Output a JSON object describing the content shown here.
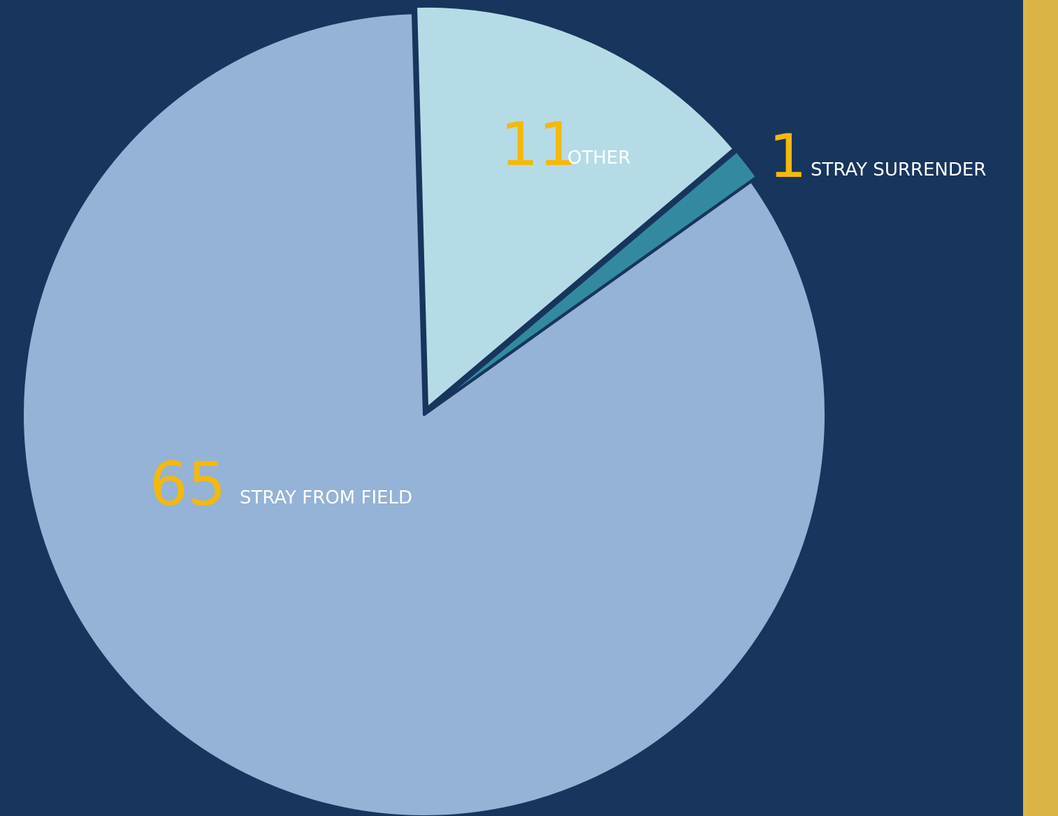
{
  "chart_data": {
    "type": "pie",
    "categories": [
      "Other",
      "Stray Surrender",
      "Stray From Field"
    ],
    "values": [
      11,
      1,
      65
    ],
    "data_labels": [
      {
        "value": "11",
        "label": "OTHER"
      },
      {
        "value": "1",
        "label": "STRAY SURRENDER"
      },
      {
        "value": "65",
        "label": "STRAY FROM FIELD"
      }
    ],
    "slice_colors": [
      "#b5dce6",
      "#338aa0",
      "#95b2d7"
    ],
    "title": "",
    "legend": "none"
  },
  "colors": {
    "background": "#18355d",
    "accent_bar": "#dbb446",
    "value_text": "#f4b90c",
    "label_text": "#ffffff",
    "slice_border": "#18355d"
  }
}
